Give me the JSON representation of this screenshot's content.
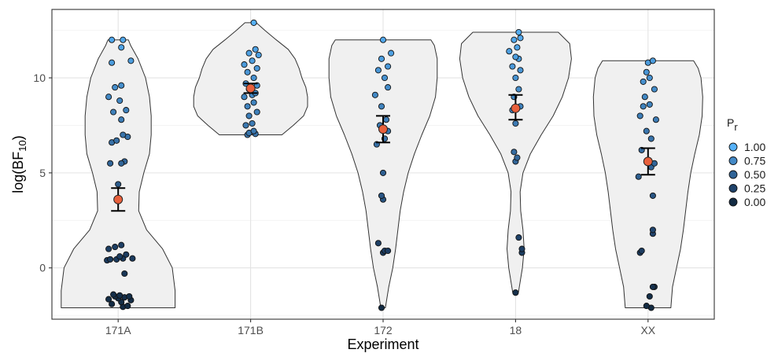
{
  "chart_data": {
    "type": "scatter",
    "subtype": "violin with jittered points, mean point and error bars",
    "xlabel": "Experiment",
    "ylabel": {
      "base": "log(BF",
      "sub": "10",
      "end": ")"
    },
    "categories": [
      "171A",
      "171B",
      "172",
      "18",
      "XX"
    ],
    "ylim": [
      -2.7,
      13.6
    ],
    "yticks": [
      0,
      5,
      10
    ],
    "grid": true,
    "legend": {
      "title": "P",
      "title_sub": "r",
      "placement": "right",
      "entries": [
        {
          "label": "1.00",
          "color": "#56B1F7"
        },
        {
          "label": "0.75",
          "color": "#4389C6"
        },
        {
          "label": "0.50",
          "color": "#316497"
        },
        {
          "label": "0.25",
          "color": "#1F426A"
        },
        {
          "label": "0.00",
          "color": "#132B43"
        }
      ]
    },
    "mean_color": "#E8603C",
    "series": [
      {
        "category": "171A",
        "mean": 3.6,
        "error": [
          3.0,
          4.2
        ],
        "violin_profile": [
          [
            -2.1,
            1.0
          ],
          [
            -1.2,
            1.0
          ],
          [
            0,
            0.95
          ],
          [
            1,
            0.78
          ],
          [
            2,
            0.5
          ],
          [
            3,
            0.36
          ],
          [
            4,
            0.37
          ],
          [
            5,
            0.45
          ],
          [
            6,
            0.55
          ],
          [
            7,
            0.58
          ],
          [
            8,
            0.58
          ],
          [
            9,
            0.55
          ],
          [
            10,
            0.48
          ],
          [
            11,
            0.35
          ],
          [
            11.7,
            0.22
          ],
          [
            12.0,
            0.18
          ]
        ],
        "points": [
          [
            -2.05,
            0.3
          ],
          [
            -2.0,
            0.6
          ],
          [
            -1.9,
            -0.4
          ],
          [
            -1.8,
            0.2
          ],
          [
            -1.7,
            0.8
          ],
          [
            -1.65,
            -0.6
          ],
          [
            -1.6,
            0.0
          ],
          [
            -1.55,
            0.4
          ],
          [
            -1.5,
            -0.2
          ],
          [
            -1.5,
            0.7
          ],
          [
            -1.45,
            0.1
          ],
          [
            -1.4,
            -0.3
          ],
          [
            -0.3,
            0.4
          ],
          [
            0.4,
            -0.7
          ],
          [
            0.45,
            -0.1
          ],
          [
            0.5,
            0.3
          ],
          [
            0.45,
            -0.5
          ],
          [
            0.6,
            0.1
          ],
          [
            0.7,
            0.5
          ],
          [
            0.5,
            0.9
          ],
          [
            1.0,
            -0.6
          ],
          [
            1.1,
            -0.2
          ],
          [
            1.2,
            0.2
          ],
          [
            4.4,
            0.0
          ],
          [
            5.5,
            -0.5
          ],
          [
            5.6,
            0.4
          ],
          [
            5.5,
            0.2
          ],
          [
            6.6,
            -0.4
          ],
          [
            6.7,
            -0.1
          ],
          [
            6.9,
            0.6
          ],
          [
            7.0,
            0.3
          ],
          [
            7.8,
            0.2
          ],
          [
            8.2,
            -0.3
          ],
          [
            8.3,
            0.5
          ],
          [
            8.8,
            0.1
          ],
          [
            9.0,
            -0.6
          ],
          [
            9.5,
            -0.2
          ],
          [
            9.6,
            0.2
          ],
          [
            10.8,
            -0.4
          ],
          [
            10.9,
            0.8
          ],
          [
            11.6,
            0.2
          ],
          [
            12.0,
            -0.4
          ],
          [
            12.0,
            0.3
          ]
        ]
      },
      {
        "category": "171B",
        "mean": 9.45,
        "error": [
          9.2,
          9.7
        ],
        "violin_profile": [
          [
            7.0,
            0.55
          ],
          [
            7.5,
            0.75
          ],
          [
            8,
            0.93
          ],
          [
            8.5,
            1.0
          ],
          [
            9,
            1.0
          ],
          [
            9.5,
            0.97
          ],
          [
            10,
            0.9
          ],
          [
            10.5,
            0.85
          ],
          [
            11,
            0.78
          ],
          [
            11.5,
            0.66
          ],
          [
            12,
            0.45
          ],
          [
            12.5,
            0.25
          ],
          [
            12.9,
            0.1
          ]
        ],
        "points": [
          [
            7.0,
            -0.2
          ],
          [
            7.05,
            0.3
          ],
          [
            7.1,
            -0.1
          ],
          [
            7.2,
            0.2
          ],
          [
            7.5,
            -0.3
          ],
          [
            7.6,
            0.1
          ],
          [
            8.0,
            -0.1
          ],
          [
            8.2,
            0.4
          ],
          [
            8.5,
            -0.2
          ],
          [
            8.7,
            0.2
          ],
          [
            9.0,
            -0.4
          ],
          [
            9.1,
            0.1
          ],
          [
            9.2,
            0.3
          ],
          [
            9.4,
            -0.1
          ],
          [
            9.6,
            0.4
          ],
          [
            9.7,
            -0.3
          ],
          [
            10.0,
            0.2
          ],
          [
            10.3,
            -0.2
          ],
          [
            10.5,
            0.4
          ],
          [
            10.7,
            -0.4
          ],
          [
            10.9,
            0.1
          ],
          [
            11.2,
            0.5
          ],
          [
            11.3,
            -0.1
          ],
          [
            11.5,
            0.3
          ],
          [
            12.9,
            0.2
          ]
        ]
      },
      {
        "category": "172",
        "mean": 7.3,
        "error": [
          6.6,
          8.0
        ],
        "violin_profile": [
          [
            -2.1,
            0.04
          ],
          [
            -1,
            0.1
          ],
          [
            0,
            0.17
          ],
          [
            1,
            0.22
          ],
          [
            2,
            0.26
          ],
          [
            3,
            0.3
          ],
          [
            4,
            0.36
          ],
          [
            5,
            0.44
          ],
          [
            6,
            0.55
          ],
          [
            7,
            0.68
          ],
          [
            8,
            0.82
          ],
          [
            9,
            0.92
          ],
          [
            10,
            0.95
          ],
          [
            11,
            0.95
          ],
          [
            11.7,
            0.9
          ],
          [
            12.0,
            0.84
          ]
        ],
        "points": [
          [
            -2.1,
            -0.1
          ],
          [
            0.8,
            0.0
          ],
          [
            0.9,
            0.1
          ],
          [
            0.9,
            0.3
          ],
          [
            1.3,
            -0.3
          ],
          [
            3.6,
            0.0
          ],
          [
            3.8,
            -0.1
          ],
          [
            5.0,
            0.0
          ],
          [
            6.5,
            -0.4
          ],
          [
            6.8,
            0.1
          ],
          [
            7.2,
            0.3
          ],
          [
            7.5,
            -0.2
          ],
          [
            7.8,
            0.2
          ],
          [
            8.5,
            -0.1
          ],
          [
            9.1,
            -0.5
          ],
          [
            9.5,
            0.3
          ],
          [
            10.0,
            0.1
          ],
          [
            10.4,
            -0.3
          ],
          [
            10.6,
            0.3
          ],
          [
            11.0,
            -0.1
          ],
          [
            11.3,
            0.5
          ],
          [
            12.0,
            0.0
          ]
        ]
      },
      {
        "category": "18",
        "mean": 8.4,
        "error": [
          7.8,
          9.1
        ],
        "violin_profile": [
          [
            -1.3,
            0.05
          ],
          [
            0,
            0.12
          ],
          [
            1,
            0.15
          ],
          [
            2,
            0.13
          ],
          [
            3,
            0.09
          ],
          [
            4,
            0.08
          ],
          [
            5,
            0.13
          ],
          [
            6,
            0.26
          ],
          [
            7,
            0.45
          ],
          [
            8,
            0.66
          ],
          [
            9,
            0.82
          ],
          [
            10,
            0.93
          ],
          [
            11,
            0.98
          ],
          [
            11.8,
            0.95
          ],
          [
            12.4,
            0.75
          ]
        ],
        "points": [
          [
            -1.3,
            0.0
          ],
          [
            0.8,
            0.4
          ],
          [
            1.0,
            0.4
          ],
          [
            1.6,
            0.2
          ],
          [
            5.6,
            0.0
          ],
          [
            5.8,
            0.1
          ],
          [
            6.1,
            -0.1
          ],
          [
            7.6,
            0.0
          ],
          [
            8.3,
            -0.2
          ],
          [
            8.5,
            0.3
          ],
          [
            9.0,
            -0.1
          ],
          [
            9.4,
            0.2
          ],
          [
            10.0,
            0.0
          ],
          [
            10.4,
            0.3
          ],
          [
            10.6,
            -0.2
          ],
          [
            11.0,
            0.2
          ],
          [
            11.1,
            0.0
          ],
          [
            11.4,
            -0.4
          ],
          [
            11.6,
            0.1
          ],
          [
            12.0,
            -0.1
          ],
          [
            12.1,
            0.3
          ],
          [
            12.4,
            0.2
          ]
        ]
      },
      {
        "category": "XX",
        "mean": 5.6,
        "error": [
          4.9,
          6.3
        ],
        "violin_profile": [
          [
            -2.1,
            0.4
          ],
          [
            -1,
            0.43
          ],
          [
            0,
            0.5
          ],
          [
            1,
            0.57
          ],
          [
            2,
            0.62
          ],
          [
            3,
            0.66
          ],
          [
            4,
            0.7
          ],
          [
            5,
            0.75
          ],
          [
            6,
            0.82
          ],
          [
            7,
            0.9
          ],
          [
            8,
            0.95
          ],
          [
            9,
            0.96
          ],
          [
            10,
            0.93
          ],
          [
            10.5,
            0.88
          ],
          [
            10.9,
            0.8
          ]
        ],
        "points": [
          [
            -2.1,
            0.2
          ],
          [
            -2.0,
            -0.1
          ],
          [
            -1.5,
            0.1
          ],
          [
            -1.0,
            0.4
          ],
          [
            -1.0,
            0.3
          ],
          [
            0.8,
            -0.5
          ],
          [
            0.9,
            -0.4
          ],
          [
            1.8,
            0.3
          ],
          [
            2.0,
            0.3
          ],
          [
            3.8,
            0.3
          ],
          [
            4.8,
            -0.6
          ],
          [
            5.3,
            0.2
          ],
          [
            5.5,
            0.4
          ],
          [
            6.2,
            -0.4
          ],
          [
            6.8,
            0.2
          ],
          [
            7.2,
            -0.1
          ],
          [
            7.8,
            0.5
          ],
          [
            8.0,
            -0.5
          ],
          [
            8.5,
            -0.3
          ],
          [
            8.6,
            0.1
          ],
          [
            9.0,
            -0.2
          ],
          [
            9.4,
            0.4
          ],
          [
            9.8,
            -0.3
          ],
          [
            10.0,
            0.1
          ],
          [
            10.3,
            -0.1
          ],
          [
            10.8,
            0.0
          ],
          [
            10.9,
            0.3
          ]
        ]
      }
    ]
  }
}
